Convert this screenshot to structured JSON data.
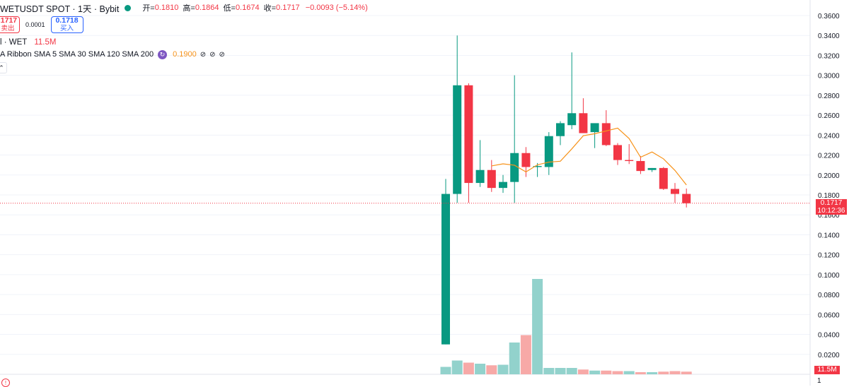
{
  "header": {
    "symbol": "WETUSDT SPOT · 1天 · Bybit",
    "open_label": "开=",
    "open_value": "0.1810",
    "high_label": "高=",
    "high_value": "0.1864",
    "low_label": "低=",
    "low_value": "0.1674",
    "close_label": "收=",
    "close_value": "0.1717",
    "change": "−0.0093 (−5.14%)"
  },
  "trade": {
    "sell_price": ".1717",
    "sell_label": "卖出",
    "spread": "0.0001",
    "buy_price": "0.1718",
    "buy_label": "买入"
  },
  "volume_legend": {
    "name": "l · WET",
    "value": "11.5M"
  },
  "ma_legend": {
    "name": "A Ribbon SMA 5 SMA 30 SMA 120 SMA 200",
    "value": "0.1900",
    "na_marks": [
      "⊘",
      "⊘",
      "⊘"
    ]
  },
  "price_tag": {
    "price": "0.1717",
    "countdown": "10:12:36"
  },
  "volume_tag": "11.5M",
  "bottom_marker": "1",
  "chart_data": {
    "type": "candlestick",
    "y_ticks": [
      "0.3600",
      "0.3400",
      "0.3200",
      "0.3000",
      "0.2800",
      "0.2600",
      "0.2400",
      "0.2200",
      "0.2000",
      "0.1800",
      "0.1600",
      "0.1400",
      "0.1200",
      "0.1000",
      "0.0800",
      "0.0600",
      "0.0400",
      "0.0200"
    ],
    "ylim": [
      0.0,
      0.36
    ],
    "candles": [
      {
        "o": 0.03,
        "h": 0.196,
        "l": 0.03,
        "c": 0.181
      },
      {
        "o": 0.181,
        "h": 0.34,
        "l": 0.172,
        "c": 0.29
      },
      {
        "o": 0.29,
        "h": 0.292,
        "l": 0.172,
        "c": 0.192
      },
      {
        "o": 0.192,
        "h": 0.235,
        "l": 0.188,
        "c": 0.205
      },
      {
        "o": 0.205,
        "h": 0.215,
        "l": 0.183,
        "c": 0.187
      },
      {
        "o": 0.187,
        "h": 0.2,
        "l": 0.182,
        "c": 0.193
      },
      {
        "o": 0.193,
        "h": 0.3,
        "l": 0.172,
        "c": 0.222
      },
      {
        "o": 0.222,
        "h": 0.228,
        "l": 0.198,
        "c": 0.208
      },
      {
        "o": 0.208,
        "h": 0.212,
        "l": 0.198,
        "c": 0.209
      },
      {
        "o": 0.208,
        "h": 0.243,
        "l": 0.2,
        "c": 0.239
      },
      {
        "o": 0.239,
        "h": 0.254,
        "l": 0.23,
        "c": 0.252
      },
      {
        "o": 0.25,
        "h": 0.323,
        "l": 0.246,
        "c": 0.262
      },
      {
        "o": 0.262,
        "h": 0.277,
        "l": 0.242,
        "c": 0.242
      },
      {
        "o": 0.243,
        "h": 0.251,
        "l": 0.227,
        "c": 0.252
      },
      {
        "o": 0.252,
        "h": 0.265,
        "l": 0.229,
        "c": 0.23
      },
      {
        "o": 0.23,
        "h": 0.232,
        "l": 0.21,
        "c": 0.215
      },
      {
        "o": 0.215,
        "h": 0.231,
        "l": 0.211,
        "c": 0.214
      },
      {
        "o": 0.214,
        "h": 0.219,
        "l": 0.201,
        "c": 0.204
      },
      {
        "o": 0.205,
        "h": 0.207,
        "l": 0.203,
        "c": 0.207
      },
      {
        "o": 0.207,
        "h": 0.208,
        "l": 0.185,
        "c": 0.186
      },
      {
        "o": 0.186,
        "h": 0.192,
        "l": 0.172,
        "c": 0.181
      },
      {
        "o": 0.181,
        "h": 0.1864,
        "l": 0.1674,
        "c": 0.1717
      }
    ],
    "sma5": [
      null,
      null,
      null,
      null,
      0.2091,
      0.2112,
      0.2098,
      0.2031,
      0.2102,
      0.2129,
      0.2138,
      0.2262,
      0.2394,
      0.2414,
      0.2442,
      0.247,
      0.2366,
      0.2178,
      0.2231,
      0.2162,
      0.2046,
      0.19
    ],
    "volume": [
      {
        "v": 0.7,
        "up": true
      },
      {
        "v": 1.3,
        "up": true
      },
      {
        "v": 1.1,
        "up": false
      },
      {
        "v": 1.0,
        "up": true
      },
      {
        "v": 0.85,
        "up": false
      },
      {
        "v": 0.9,
        "up": true
      },
      {
        "v": 3.0,
        "up": true
      },
      {
        "v": 3.7,
        "up": false
      },
      {
        "v": 9.0,
        "up": true
      },
      {
        "v": 0.6,
        "up": true
      },
      {
        "v": 0.6,
        "up": true
      },
      {
        "v": 0.6,
        "up": true
      },
      {
        "v": 0.45,
        "up": false
      },
      {
        "v": 0.35,
        "up": true
      },
      {
        "v": 0.35,
        "up": false
      },
      {
        "v": 0.3,
        "up": false
      },
      {
        "v": 0.3,
        "up": true
      },
      {
        "v": 0.2,
        "up": false
      },
      {
        "v": 0.2,
        "up": true
      },
      {
        "v": 0.25,
        "up": false
      },
      {
        "v": 0.3,
        "up": false
      },
      {
        "v": 0.25,
        "up": false
      }
    ],
    "colors": {
      "up": "#089981",
      "down": "#f23645",
      "vol_up": "#92d2cc",
      "vol_down": "#f7a9a7",
      "ma": "#f7931a",
      "grid": "#f0f3fa",
      "price_line": "#f23645"
    },
    "grid": true
  }
}
